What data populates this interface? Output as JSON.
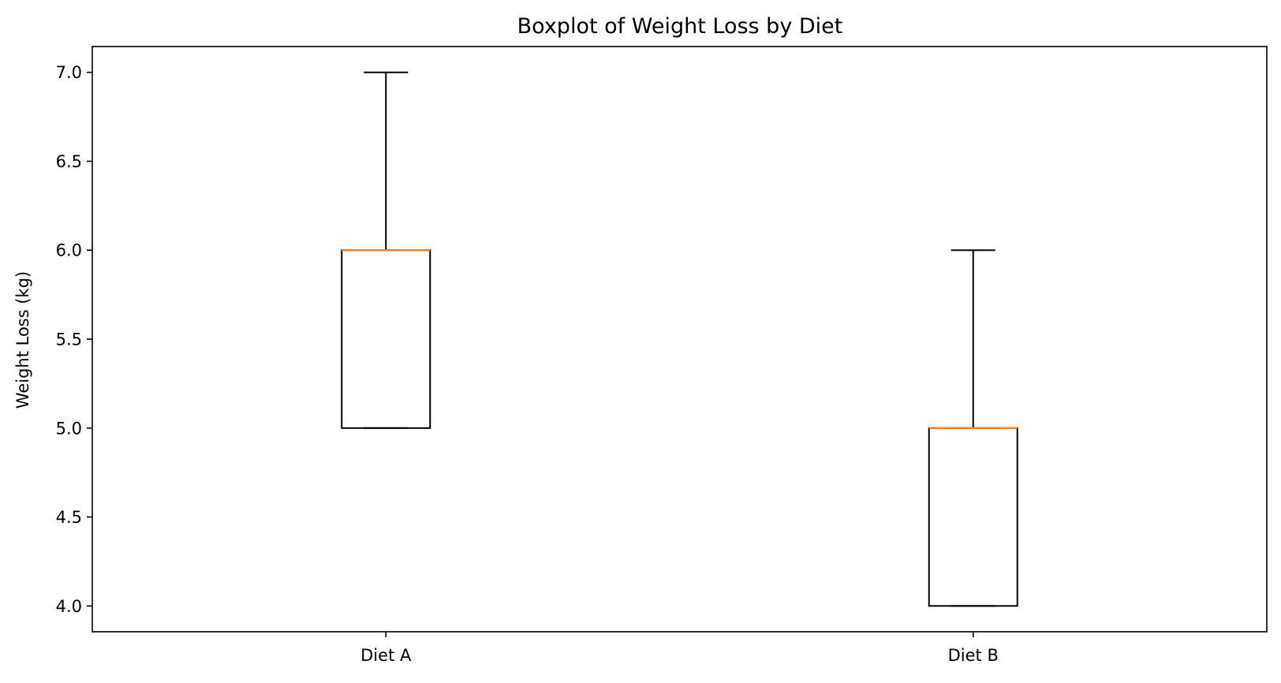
{
  "chart_data": {
    "type": "boxplot",
    "title": "Boxplot of Weight Loss by Diet",
    "xlabel": "",
    "ylabel": "Weight Loss (kg)",
    "ylim": [
      3.855,
      7.145
    ],
    "yticks": [
      "4.0",
      "4.5",
      "5.0",
      "5.5",
      "6.0",
      "6.5",
      "7.0"
    ],
    "ytick_values": [
      4.0,
      4.5,
      5.0,
      5.5,
      6.0,
      6.5,
      7.0
    ],
    "categories": [
      "Diet A",
      "Diet B"
    ],
    "boxes": [
      {
        "category": "Diet A",
        "whisker_low": 5.0,
        "q1": 5.0,
        "median": 6.0,
        "q3": 6.0,
        "whisker_high": 7.0
      },
      {
        "category": "Diet B",
        "whisker_low": 4.0,
        "q1": 4.0,
        "median": 5.0,
        "q3": 5.0,
        "whisker_high": 6.0
      }
    ],
    "grid": false,
    "legend": "none",
    "colors": {
      "box": "#000000",
      "median": "#ff7f0e",
      "whisker": "#000000"
    }
  }
}
